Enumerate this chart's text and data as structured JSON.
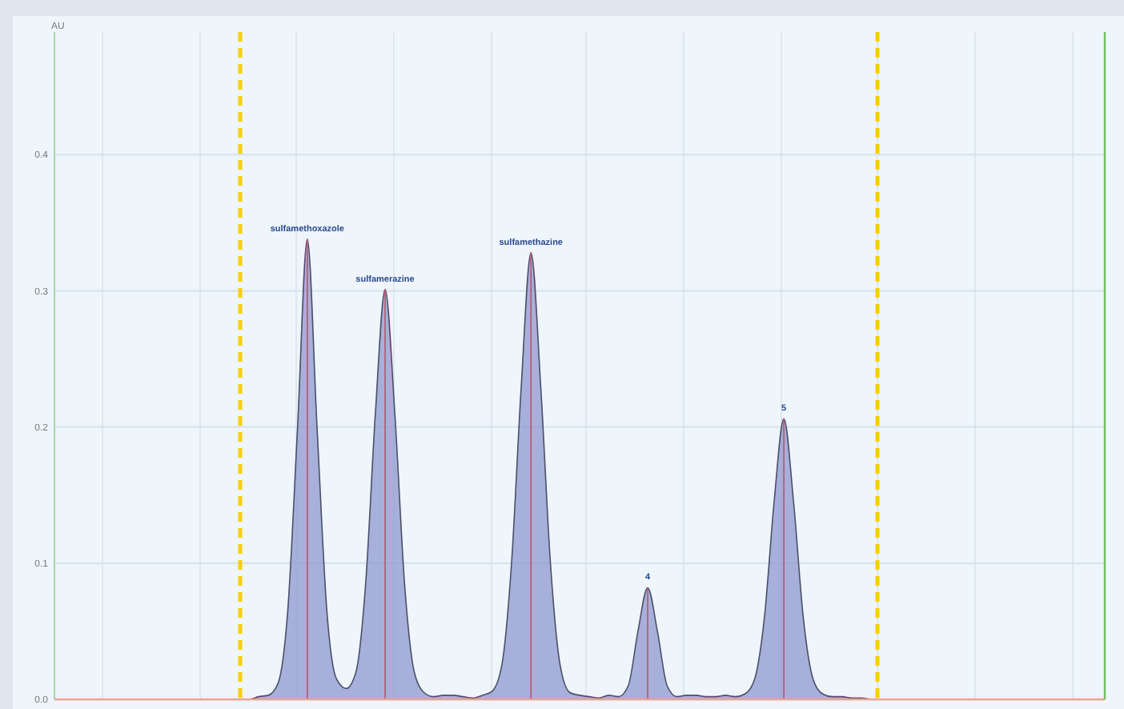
{
  "chart_data": {
    "type": "area",
    "ylabel": "AU",
    "categories": [
      null,
      null,
      null,
      null,
      null,
      null,
      null,
      null,
      null,
      null,
      null,
      null,
      null,
      null,
      null,
      null,
      null,
      null,
      null,
      null,
      null,
      null,
      null,
      null,
      null,
      null,
      null,
      null,
      null,
      null,
      null,
      null,
      null,
      null,
      null,
      null,
      null,
      null,
      null,
      null,
      null,
      null,
      null,
      null,
      null,
      null,
      null,
      null,
      null,
      null,
      null,
      null,
      null,
      null,
      null,
      null,
      null,
      null,
      null,
      null,
      null,
      null,
      null,
      null,
      null,
      null,
      null,
      null,
      null,
      null,
      null,
      null,
      null,
      null,
      null,
      null,
      null,
      null,
      null,
      null,
      null,
      null,
      null,
      null,
      null,
      null,
      null,
      null,
      null,
      null,
      null,
      null,
      null,
      null,
      null,
      null,
      null,
      null,
      null,
      null,
      null,
      null,
      null,
      null,
      null,
      null,
      null,
      null,
      null
    ],
    "series": [
      {
        "color": "#8f98cf",
        "values": [
          0,
          0,
          0,
          0,
          0,
          0,
          0,
          0,
          0,
          0,
          0,
          0,
          0,
          0,
          0,
          0,
          0,
          0,
          0,
          0,
          0,
          0.002,
          0.003,
          0.012,
          0.066,
          0.2,
          0.338,
          0.2,
          0.066,
          0.015,
          0.008,
          0.02,
          0.085,
          0.21,
          0.301,
          0.21,
          0.085,
          0.02,
          0.005,
          0.002,
          0.003,
          0.003,
          0.002,
          0.001,
          0.003,
          0.006,
          0.025,
          0.1,
          0.23,
          0.328,
          0.23,
          0.1,
          0.025,
          0.005,
          0.003,
          0.002,
          0.001,
          0.003,
          0.002,
          0.01,
          0.05,
          0.082,
          0.05,
          0.01,
          0.002,
          0.003,
          0.003,
          0.002,
          0.002,
          0.003,
          0.002,
          0.004,
          0.015,
          0.06,
          0.145,
          0.206,
          0.145,
          0.06,
          0.015,
          0.004,
          0.002,
          0.002,
          0.001,
          0.001,
          0,
          0,
          0,
          0,
          0,
          0,
          0,
          0,
          0,
          0,
          0,
          0,
          0,
          0,
          0,
          0,
          0,
          0,
          0,
          0,
          0,
          0,
          0,
          0,
          0
        ]
      }
    ],
    "ylim": [
      0,
      0.49
    ],
    "yticks": [
      {
        "value": 0,
        "label": "0.0"
      },
      0.1,
      0.2,
      0.3,
      0.4
    ],
    "grid": true,
    "annotations": [
      {
        "text": "sulfamethoxazole",
        "y": 0.338
      },
      {
        "text": "sulfamerazine",
        "y": 0.301
      },
      {
        "text": "sulfamethazine",
        "y": 0.328
      },
      {
        "text": "4",
        "y": 0.082
      },
      {
        "text": "5",
        "y": 0.206
      }
    ]
  }
}
